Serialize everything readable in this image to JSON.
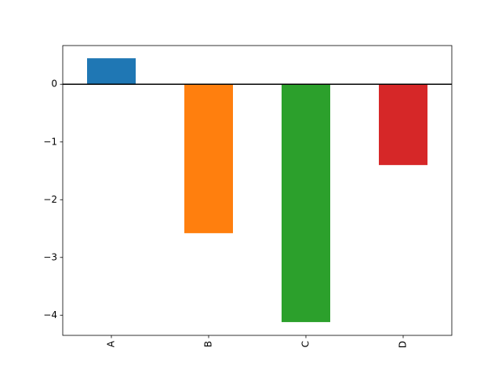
{
  "chart_data": {
    "type": "bar",
    "categories": [
      "A",
      "B",
      "C",
      "D"
    ],
    "values": [
      0.45,
      -2.58,
      -4.12,
      -1.4
    ],
    "colors": [
      "#1f77b4",
      "#ff7f0e",
      "#2ca02c",
      "#d62728"
    ],
    "ylim": [
      -4.35,
      0.67
    ],
    "yticks": [
      {
        "value": -4,
        "label": "−4"
      },
      {
        "value": -3,
        "label": "−3"
      },
      {
        "value": -2,
        "label": "−2"
      },
      {
        "value": -1,
        "label": "−1"
      },
      0
    ],
    "hline": 0,
    "grid": false
  }
}
